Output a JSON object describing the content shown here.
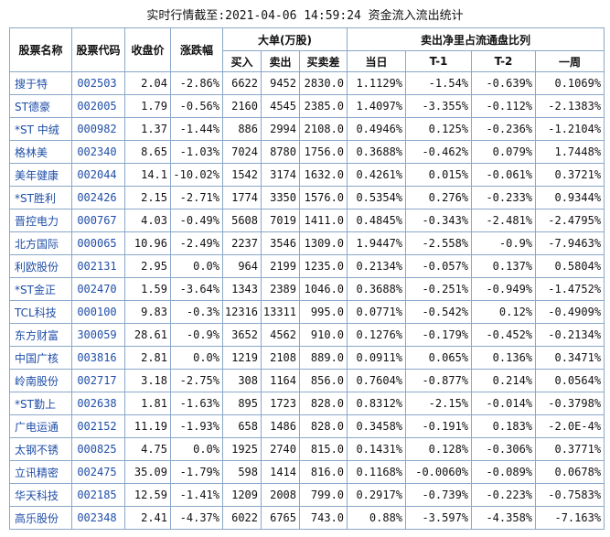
{
  "title": "实时行情截至:2021-04-06 14:59:24 资金流入流出统计",
  "headers": {
    "name": "股票名称",
    "code": "股票代码",
    "close": "收盘价",
    "change": "涨跌幅",
    "big_order": "大单(万股)",
    "buy": "买入",
    "sell": "卖出",
    "diff": "买卖差",
    "ratio": "卖出净里占流通盘比列",
    "day": "当日",
    "t1": "T-1",
    "t2": "T-2",
    "week": "一周"
  },
  "rows": [
    {
      "name": "搜于特",
      "code": "002503",
      "close": "2.04",
      "change": "-2.86%",
      "buy": "6622",
      "sell": "9452",
      "diff": "2830.0",
      "day": "1.1129%",
      "t1": "-1.54%",
      "t2": "-0.639%",
      "week": "0.1069%"
    },
    {
      "name": "ST德豪",
      "code": "002005",
      "close": "1.79",
      "change": "-0.56%",
      "buy": "2160",
      "sell": "4545",
      "diff": "2385.0",
      "day": "1.4097%",
      "t1": "-3.355%",
      "t2": "-0.112%",
      "week": "-2.1383%"
    },
    {
      "name": "*ST 中绒",
      "code": "000982",
      "close": "1.37",
      "change": "-1.44%",
      "buy": "886",
      "sell": "2994",
      "diff": "2108.0",
      "day": "0.4946%",
      "t1": "0.125%",
      "t2": "-0.236%",
      "week": "-1.2104%"
    },
    {
      "name": "格林美",
      "code": "002340",
      "close": "8.65",
      "change": "-1.03%",
      "buy": "7024",
      "sell": "8780",
      "diff": "1756.0",
      "day": "0.3688%",
      "t1": "-0.462%",
      "t2": "0.079%",
      "week": "1.7448%"
    },
    {
      "name": "美年健康",
      "code": "002044",
      "close": "14.1",
      "change": "-10.02%",
      "buy": "1542",
      "sell": "3174",
      "diff": "1632.0",
      "day": "0.4261%",
      "t1": "0.015%",
      "t2": "-0.061%",
      "week": "0.3721%"
    },
    {
      "name": "*ST胜利",
      "code": "002426",
      "close": "2.15",
      "change": "-2.71%",
      "buy": "1774",
      "sell": "3350",
      "diff": "1576.0",
      "day": "0.5354%",
      "t1": "0.276%",
      "t2": "-0.233%",
      "week": "0.9344%"
    },
    {
      "name": "晋控电力",
      "code": "000767",
      "close": "4.03",
      "change": "-0.49%",
      "buy": "5608",
      "sell": "7019",
      "diff": "1411.0",
      "day": "0.4845%",
      "t1": "-0.343%",
      "t2": "-2.481%",
      "week": "-2.4795%"
    },
    {
      "name": "北方国际",
      "code": "000065",
      "close": "10.96",
      "change": "-2.49%",
      "buy": "2237",
      "sell": "3546",
      "diff": "1309.0",
      "day": "1.9447%",
      "t1": "-2.558%",
      "t2": "-0.9%",
      "week": "-7.9463%"
    },
    {
      "name": "利欧股份",
      "code": "002131",
      "close": "2.95",
      "change": "0.0%",
      "buy": "964",
      "sell": "2199",
      "diff": "1235.0",
      "day": "0.2134%",
      "t1": "-0.057%",
      "t2": "0.137%",
      "week": "0.5804%"
    },
    {
      "name": "*ST金正",
      "code": "002470",
      "close": "1.59",
      "change": "-3.64%",
      "buy": "1343",
      "sell": "2389",
      "diff": "1046.0",
      "day": "0.3688%",
      "t1": "-0.251%",
      "t2": "-0.949%",
      "week": "-1.4752%"
    },
    {
      "name": "TCL科技",
      "code": "000100",
      "close": "9.83",
      "change": "-0.3%",
      "buy": "12316",
      "sell": "13311",
      "diff": "995.0",
      "day": "0.0771%",
      "t1": "-0.542%",
      "t2": "0.12%",
      "week": "-0.4909%"
    },
    {
      "name": "东方财富",
      "code": "300059",
      "close": "28.61",
      "change": "-0.9%",
      "buy": "3652",
      "sell": "4562",
      "diff": "910.0",
      "day": "0.1276%",
      "t1": "-0.179%",
      "t2": "-0.452%",
      "week": "-0.2134%"
    },
    {
      "name": "中国广核",
      "code": "003816",
      "close": "2.81",
      "change": "0.0%",
      "buy": "1219",
      "sell": "2108",
      "diff": "889.0",
      "day": "0.0911%",
      "t1": "0.065%",
      "t2": "0.136%",
      "week": "0.3471%"
    },
    {
      "name": "岭南股份",
      "code": "002717",
      "close": "3.18",
      "change": "-2.75%",
      "buy": "308",
      "sell": "1164",
      "diff": "856.0",
      "day": "0.7604%",
      "t1": "-0.877%",
      "t2": "0.214%",
      "week": "0.0564%"
    },
    {
      "name": "*ST勤上",
      "code": "002638",
      "close": "1.81",
      "change": "-1.63%",
      "buy": "895",
      "sell": "1723",
      "diff": "828.0",
      "day": "0.8312%",
      "t1": "-2.15%",
      "t2": "-0.014%",
      "week": "-0.3798%"
    },
    {
      "name": "广电运通",
      "code": "002152",
      "close": "11.19",
      "change": "-1.93%",
      "buy": "658",
      "sell": "1486",
      "diff": "828.0",
      "day": "0.3458%",
      "t1": "-0.191%",
      "t2": "0.183%",
      "week": "-2.0E-4%"
    },
    {
      "name": "太钢不锈",
      "code": "000825",
      "close": "4.75",
      "change": "0.0%",
      "buy": "1925",
      "sell": "2740",
      "diff": "815.0",
      "day": "0.1431%",
      "t1": "0.128%",
      "t2": "-0.306%",
      "week": "0.3771%"
    },
    {
      "name": "立讯精密",
      "code": "002475",
      "close": "35.09",
      "change": "-1.79%",
      "buy": "598",
      "sell": "1414",
      "diff": "816.0",
      "day": "0.1168%",
      "t1": "-0.0060%",
      "t2": "-0.089%",
      "week": "0.0678%"
    },
    {
      "name": "华天科技",
      "code": "002185",
      "close": "12.59",
      "change": "-1.41%",
      "buy": "1209",
      "sell": "2008",
      "diff": "799.0",
      "day": "0.2917%",
      "t1": "-0.739%",
      "t2": "-0.223%",
      "week": "-0.7583%"
    },
    {
      "name": "高乐股份",
      "code": "002348",
      "close": "2.41",
      "change": "-4.37%",
      "buy": "6022",
      "sell": "6765",
      "diff": "743.0",
      "day": "0.88%",
      "t1": "-3.597%",
      "t2": "-4.358%",
      "week": "-7.163%"
    }
  ]
}
